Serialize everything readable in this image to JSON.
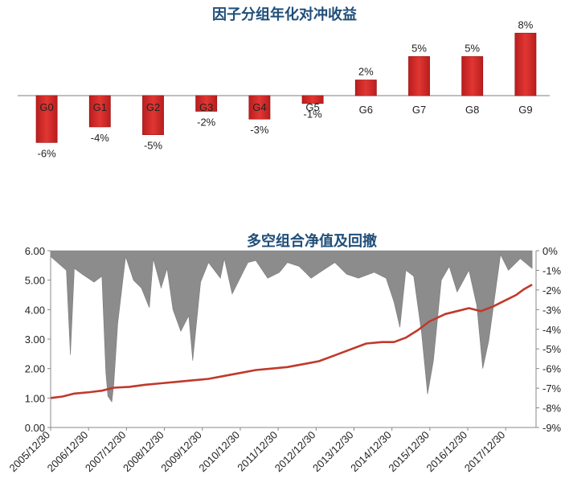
{
  "chart_data": [
    {
      "type": "bar",
      "title": "因子分组年化对冲收益",
      "categories": [
        "G0",
        "G1",
        "G2",
        "G3",
        "G4",
        "G5",
        "G6",
        "G7",
        "G8",
        "G9"
      ],
      "values": [
        -6,
        -4,
        -5,
        -2,
        -3,
        -1,
        2,
        5,
        5,
        8
      ],
      "value_labels": [
        "-6%",
        "-4%",
        "-5%",
        "-2%",
        "-3%",
        "-1%",
        "2%",
        "5%",
        "5%",
        "8%"
      ],
      "ylim": [
        -7,
        8
      ],
      "bar_color": "#C62828",
      "grid": false
    },
    {
      "type": "line",
      "title": "多空组合净值及回撤",
      "x_ticks": [
        "2005/12/30",
        "2006/12/30",
        "2007/12/30",
        "2008/12/30",
        "2009/12/30",
        "2010/12/30",
        "2011/12/30",
        "2012/12/30",
        "2013/12/30",
        "2014/12/30",
        "2015/12/30",
        "2016/12/30",
        "2017/12/30"
      ],
      "left_axis": {
        "ylim": [
          0,
          6
        ],
        "ticks": [
          "0.00",
          "1.00",
          "2.00",
          "3.00",
          "4.00",
          "5.00",
          "6.00"
        ]
      },
      "right_axis": {
        "ylim": [
          -9,
          0
        ],
        "ticks": [
          "0%",
          "-1%",
          "-2%",
          "-3%",
          "-4%",
          "-5%",
          "-6%",
          "-7%",
          "-8%",
          "-9%"
        ]
      },
      "series": [
        {
          "name": "",
          "kind": "line",
          "axis": "left",
          "color": "#C0392B",
          "x": [
            2006.0,
            2006.3,
            2006.6,
            2007.0,
            2007.3,
            2007.6,
            2008.0,
            2008.4,
            2008.8,
            2009.2,
            2009.6,
            2010.0,
            2010.4,
            2010.8,
            2011.2,
            2011.6,
            2012.0,
            2012.4,
            2012.8,
            2013.2,
            2013.6,
            2014.0,
            2014.4,
            2014.7,
            2015.0,
            2015.3,
            2015.6,
            2016.0,
            2016.3,
            2016.6,
            2016.9,
            2017.2,
            2017.5,
            2017.8,
            2018.0,
            2018.2
          ],
          "y": [
            1.0,
            1.05,
            1.15,
            1.2,
            1.25,
            1.35,
            1.38,
            1.45,
            1.5,
            1.55,
            1.6,
            1.65,
            1.75,
            1.85,
            1.95,
            2.0,
            2.05,
            2.15,
            2.25,
            2.45,
            2.65,
            2.85,
            2.9,
            2.9,
            3.05,
            3.3,
            3.6,
            3.85,
            3.95,
            4.05,
            3.95,
            4.1,
            4.3,
            4.5,
            4.7,
            4.85
          ]
        },
        {
          "name": "",
          "kind": "area",
          "axis": "right",
          "color": "#8C8C8C",
          "x": [
            2006.0,
            2006.4,
            2006.5,
            2006.6,
            2006.8,
            2007.1,
            2007.3,
            2007.4,
            2007.45,
            2007.55,
            2007.6,
            2007.7,
            2007.9,
            2008.1,
            2008.3,
            2008.5,
            2008.6,
            2008.8,
            2008.95,
            2009.1,
            2009.3,
            2009.5,
            2009.6,
            2009.8,
            2010.0,
            2010.3,
            2010.4,
            2010.6,
            2010.9,
            2011.0,
            2011.2,
            2011.5,
            2011.8,
            2012.0,
            2012.3,
            2012.6,
            2012.9,
            2013.2,
            2013.5,
            2013.8,
            2014.2,
            2014.5,
            2014.7,
            2014.85,
            2015.0,
            2015.2,
            2015.4,
            2015.55,
            2015.7,
            2015.9,
            2016.1,
            2016.3,
            2016.6,
            2016.8,
            2016.95,
            2017.1,
            2017.4,
            2017.6,
            2017.9,
            2018.2
          ],
          "y": [
            -0.3,
            -1.0,
            -5.3,
            -0.9,
            -1.2,
            -1.6,
            -1.3,
            -6.2,
            -7.4,
            -7.7,
            -6.8,
            -3.7,
            -0.3,
            -1.5,
            -1.9,
            -2.9,
            -0.4,
            -1.9,
            -0.9,
            -3.0,
            -4.1,
            -3.3,
            -5.6,
            -1.6,
            -0.6,
            -1.4,
            -0.4,
            -2.2,
            -1.0,
            -0.6,
            -0.5,
            -1.4,
            -1.1,
            -0.6,
            -0.8,
            -1.4,
            -1.0,
            -0.6,
            -1.2,
            -1.4,
            -1.1,
            -1.4,
            -2.6,
            -3.9,
            -1.0,
            -1.3,
            -4.2,
            -7.3,
            -5.6,
            -1.5,
            -0.8,
            -2.1,
            -1.0,
            -2.8,
            -6.0,
            -4.6,
            -0.2,
            -1.0,
            -0.4,
            -0.9
          ]
        }
      ],
      "grid": false
    }
  ]
}
